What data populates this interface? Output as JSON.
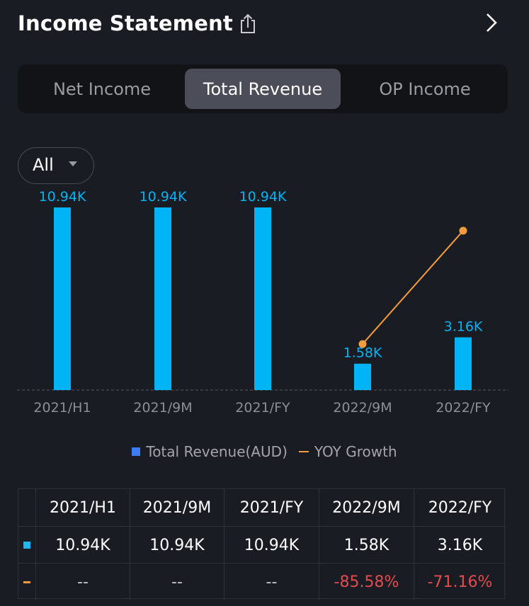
{
  "header": {
    "title": "Income Statement",
    "share_icon": "share-icon",
    "next_icon": "chevron-right-icon"
  },
  "tabs": [
    {
      "label": "Net Income",
      "active": false
    },
    {
      "label": "Total Revenue",
      "active": true
    },
    {
      "label": "OP Income",
      "active": false
    }
  ],
  "period_select": {
    "value": "All",
    "icon": "caret-down-icon"
  },
  "colors": {
    "bar": "#00b4f5",
    "line": "#f39c3b",
    "negative": "#e24b4f",
    "legend_square": "#3d7bf5",
    "active_tab": "#4b4e58"
  },
  "chart_data": {
    "type": "bar",
    "categories": [
      "2021/H1",
      "2021/9M",
      "2021/FY",
      "2022/9M",
      "2022/FY"
    ],
    "series": [
      {
        "name": "Total Revenue(AUD)",
        "type": "bar",
        "values": [
          10940,
          10940,
          10940,
          1580,
          3160
        ],
        "labels": [
          "10.94K",
          "10.94K",
          "10.94K",
          "1.58K",
          "3.16K"
        ]
      },
      {
        "name": "YOY Growth",
        "type": "line",
        "values": [
          null,
          null,
          null,
          -85.58,
          -71.16
        ],
        "unit": "%"
      }
    ],
    "legend": [
      "Total Revenue(AUD)",
      "YOY Growth"
    ],
    "legend_position": "bottom"
  },
  "table": {
    "headers": [
      "2021/H1",
      "2021/9M",
      "2021/FY",
      "2022/9M",
      "2022/FY"
    ],
    "rows": [
      {
        "marker": "bar",
        "values": [
          "10.94K",
          "10.94K",
          "10.94K",
          "1.58K",
          "3.16K"
        ]
      },
      {
        "marker": "line",
        "values": [
          "--",
          "--",
          "--",
          "-85.58%",
          "-71.16%"
        ]
      }
    ]
  }
}
